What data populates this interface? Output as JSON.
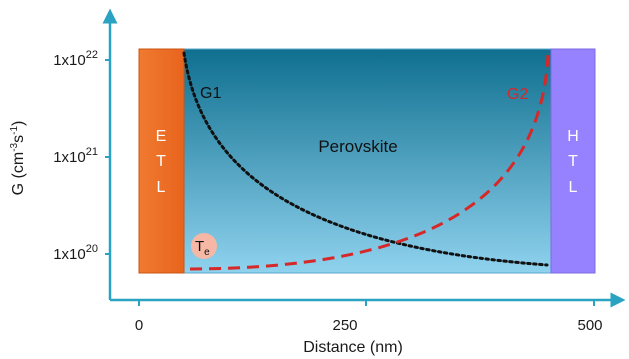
{
  "colors": {
    "axis": "#2aa3c2",
    "etl": "#ec6c23",
    "htl": "#9681ff",
    "perovskite_top": "#0f6f8f",
    "perovskite_bottom": "#8fd2ee",
    "g1": "#111111",
    "g2": "#d62828",
    "te_circle": "#f6b8a4"
  },
  "axes": {
    "ylabel_main": "G (cm",
    "ylabel_sup1": "-3",
    "ylabel_mid": "s",
    "ylabel_sup2": "-1",
    "ylabel_end": ")",
    "xlabel": "Distance (nm)",
    "yticks": [
      {
        "base": "1x10",
        "exp": "22"
      },
      {
        "base": "1x10",
        "exp": "21"
      },
      {
        "base": "1x10",
        "exp": "20"
      }
    ],
    "xticks": [
      "0",
      "250",
      "500"
    ]
  },
  "layers": {
    "etl": [
      "E",
      "T",
      "L"
    ],
    "perovskite": "Perovskite",
    "htl": [
      "H",
      "T",
      "L"
    ]
  },
  "curves": {
    "g1": "G1",
    "g2": "G2"
  },
  "te": {
    "main": "T",
    "sub": "e"
  }
}
